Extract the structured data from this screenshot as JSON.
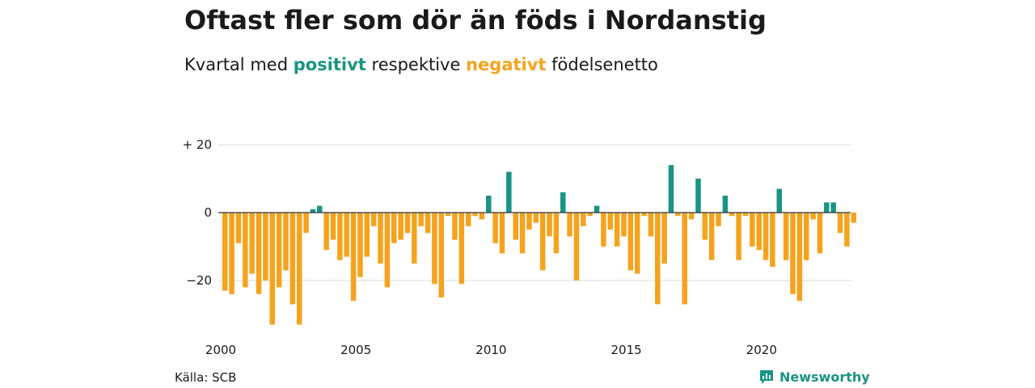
{
  "title": "Oftast fler som dör än föds i Nordanstig",
  "subtitle": {
    "prefix": "Kvartal med",
    "positive": "positivt",
    "middle": "respektive",
    "negative": "negativt",
    "suffix": "födelsenetto"
  },
  "colors": {
    "positive": "#1a9482",
    "negative": "#f5a31d",
    "grid": "#dddddd",
    "zero_line": "#333333"
  },
  "chart_data": {
    "type": "bar",
    "title": "Oftast fler som dör än föds i Nordanstig",
    "subtitle": "Kvartal med positivt respektive negativt födelsenetto",
    "xlabel": "",
    "ylabel": "",
    "ylim": [
      -36,
      20
    ],
    "grid": "horizontal",
    "legend": "none",
    "y_ticks": [
      20,
      0,
      -20
    ],
    "y_tick_labels": [
      "+ 20",
      "0",
      "−20"
    ],
    "x_ticks": [
      2000,
      2005,
      2010,
      2015,
      2020
    ],
    "x_tick_labels": [
      "2000",
      "2005",
      "2010",
      "2015",
      "2020"
    ],
    "start_year": 2000,
    "periods": "quarters",
    "values": [
      -23,
      -24,
      -9,
      -22,
      -18,
      -24,
      -20,
      -33,
      -22,
      -17,
      -27,
      -33,
      -6,
      1,
      2,
      -11,
      -8,
      -14,
      -13,
      -26,
      -19,
      -13,
      -4,
      -15,
      -22,
      -9,
      -8,
      -6,
      -15,
      -4,
      -6,
      -21,
      -25,
      -1,
      -8,
      -21,
      -4,
      -1,
      -2,
      5,
      -9,
      -12,
      12,
      -8,
      -12,
      -5,
      -3,
      -17,
      -7,
      -12,
      6,
      -7,
      -20,
      -4,
      -1,
      2,
      -10,
      -5,
      -10,
      -7,
      -17,
      -18,
      -1,
      -7,
      -27,
      -15,
      14,
      -1,
      -27,
      -2,
      10,
      -8,
      -14,
      -4,
      5,
      -1,
      -14,
      -1,
      -10,
      -11,
      -14,
      -16,
      7,
      -14,
      -24,
      -26,
      -14,
      -2,
      -12,
      3,
      3,
      -6,
      -10,
      -3
    ]
  },
  "source": "Källa: SCB",
  "brand": "Newsworthy"
}
